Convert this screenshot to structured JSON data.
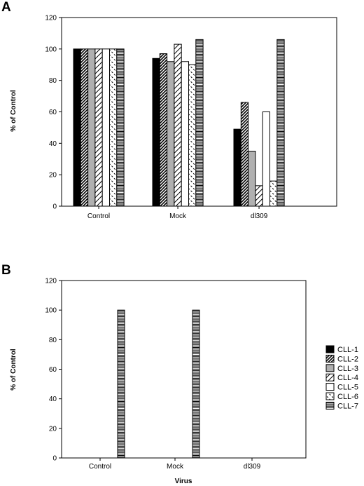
{
  "chart_data": [
    {
      "type": "bar",
      "panel": "A",
      "categories": [
        "Control",
        "Mock",
        "dl309"
      ],
      "series": [
        {
          "name": "CLL-1",
          "values": [
            100,
            94,
            49
          ]
        },
        {
          "name": "CLL-2",
          "values": [
            100,
            97,
            66
          ]
        },
        {
          "name": "CLL-3",
          "values": [
            100,
            92,
            35
          ]
        },
        {
          "name": "CLL-4",
          "values": [
            100,
            103,
            13
          ]
        },
        {
          "name": "CLL-5",
          "values": [
            100,
            92,
            60
          ]
        },
        {
          "name": "CLL-6",
          "values": [
            100,
            90,
            16
          ]
        },
        {
          "name": "CLL-7",
          "values": [
            100,
            106,
            106
          ]
        }
      ],
      "xlabel": "",
      "ylabel": "% of Control",
      "ylim": [
        0,
        120
      ],
      "yticks": [
        "0",
        "20",
        "40",
        "60",
        "80",
        "100",
        "120"
      ],
      "grid": false,
      "legend": "none"
    },
    {
      "type": "bar",
      "panel": "B",
      "categories": [
        "Control",
        "Mock",
        "dl309"
      ],
      "series": [
        {
          "name": "CLL-1",
          "values": [
            0,
            0,
            0
          ]
        },
        {
          "name": "CLL-2",
          "values": [
            0,
            0,
            0
          ]
        },
        {
          "name": "CLL-3",
          "values": [
            0,
            0,
            0
          ]
        },
        {
          "name": "CLL-4",
          "values": [
            0,
            0,
            0
          ]
        },
        {
          "name": "CLL-5",
          "values": [
            0,
            0,
            0
          ]
        },
        {
          "name": "CLL-6",
          "values": [
            0,
            0,
            0
          ]
        },
        {
          "name": "CLL-7",
          "values": [
            100,
            100,
            0
          ]
        }
      ],
      "xlabel": "Virus",
      "ylabel": "% of Control",
      "ylim": [
        0,
        120
      ],
      "yticks": [
        "0",
        "20",
        "40",
        "60",
        "80",
        "100",
        "120"
      ],
      "grid": false,
      "legend": "right"
    }
  ],
  "legend": {
    "entries": [
      {
        "label": "CLL-1",
        "pattern": "solid-black"
      },
      {
        "label": "CLL-2",
        "pattern": "dense-diagonal"
      },
      {
        "label": "CLL-3",
        "pattern": "solid-gray"
      },
      {
        "label": "CLL-4",
        "pattern": "sparse-diagonal"
      },
      {
        "label": "CLL-5",
        "pattern": "white"
      },
      {
        "label": "CLL-6",
        "pattern": "dash-diagonal"
      },
      {
        "label": "CLL-7",
        "pattern": "horizontal-stripes"
      }
    ]
  },
  "colors": {
    "ink": "#000000",
    "gray_fill": "#b0b0b0",
    "background": "#ffffff"
  }
}
